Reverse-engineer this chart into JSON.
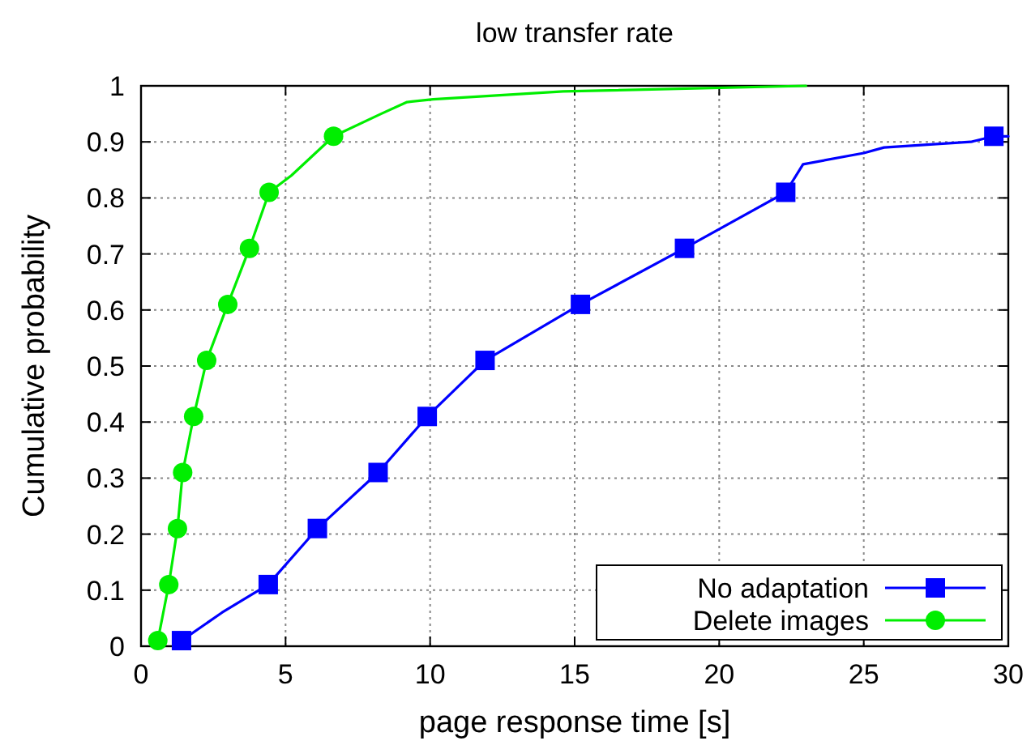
{
  "chart_data": {
    "type": "line",
    "title": "low transfer rate",
    "xlabel": "page response time [s]",
    "ylabel": "Cumulative probability",
    "xlim": [
      0,
      30
    ],
    "xticks": [
      0,
      5,
      10,
      15,
      20,
      25,
      30
    ],
    "ylim": [
      0,
      1
    ],
    "yticks": [
      0,
      0.1,
      0.2,
      0.3,
      0.4,
      0.5,
      0.6,
      0.7,
      0.8,
      0.9,
      1
    ],
    "grid": true,
    "legend": "bottom right",
    "line_style": "solid",
    "series": [
      {
        "type": "line",
        "name": "No adaptation",
        "color": "#0000ff",
        "marker": "none",
        "x": [
          1.3,
          1.4,
          2.8,
          4.4,
          6.1,
          8.2,
          9.9,
          11.9,
          15.2,
          18.8,
          22.3,
          22.9,
          25,
          25.7,
          28.7,
          29.5,
          30
        ],
        "values": [
          0,
          0.01,
          0.06,
          0.11,
          0.21,
          0.31,
          0.41,
          0.51,
          0.61,
          0.71,
          0.81,
          0.86,
          0.88,
          0.89,
          0.9,
          0.91,
          0.91
        ]
      },
      {
        "type": "scatter",
        "color": "#0000ff",
        "marker": "square",
        "x": [
          1.4,
          4.4,
          6.1,
          8.2,
          9.9,
          11.9,
          15.2,
          18.8,
          22.3,
          29.5
        ],
        "values": [
          0.01,
          0.11,
          0.21,
          0.31,
          0.41,
          0.51,
          0.61,
          0.71,
          0.81,
          0.91
        ]
      },
      {
        "type": "line",
        "name": "Delete images",
        "color": "#00ee00",
        "marker": "none",
        "x": [
          0.4,
          0.58,
          0.96,
          1.26,
          1.44,
          1.82,
          2.27,
          3.0,
          3.75,
          4.43,
          5.2,
          6.66,
          8.3,
          9.2,
          10.1,
          14.6,
          23
        ],
        "values": [
          0,
          0.01,
          0.11,
          0.21,
          0.31,
          0.41,
          0.51,
          0.61,
          0.71,
          0.81,
          0.84,
          0.91,
          0.95,
          0.971,
          0.976,
          0.99,
          1.0
        ]
      },
      {
        "type": "scatter",
        "color": "#00ee00",
        "marker": "circle",
        "x": [
          0.58,
          0.96,
          1.26,
          1.44,
          1.82,
          2.27,
          3.0,
          3.75,
          4.43,
          6.66
        ],
        "values": [
          0.01,
          0.11,
          0.21,
          0.31,
          0.41,
          0.51,
          0.61,
          0.71,
          0.81,
          0.91
        ]
      }
    ]
  }
}
